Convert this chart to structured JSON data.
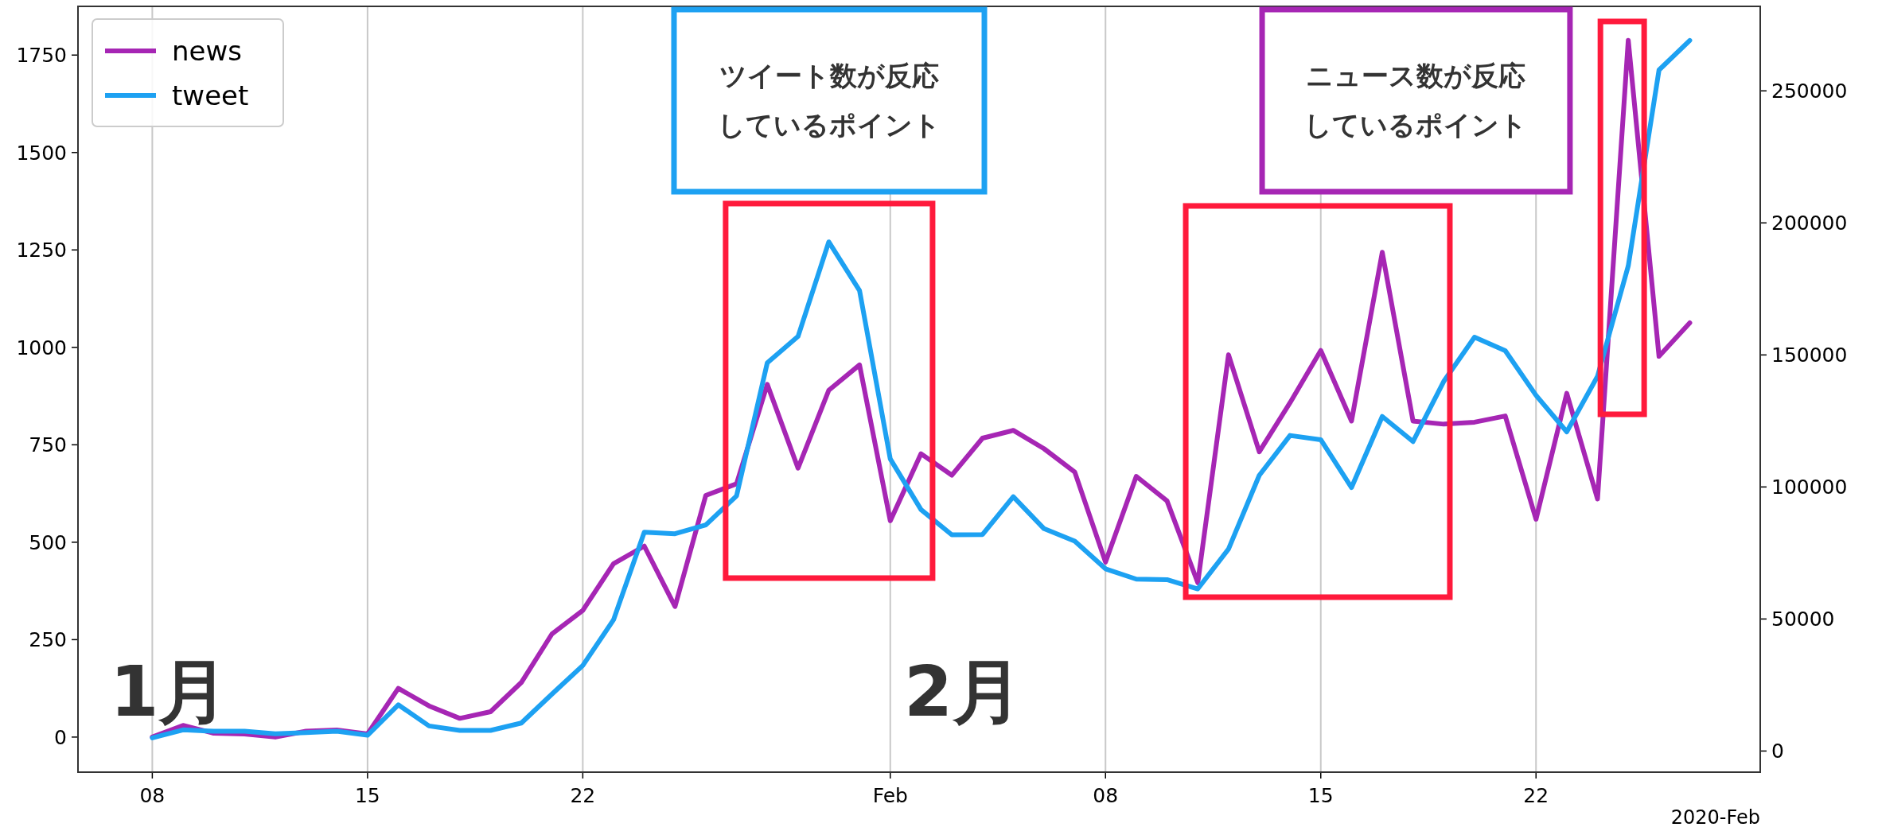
{
  "chart_data": {
    "type": "line",
    "x": [
      "2020-01-08",
      "2020-01-09",
      "2020-01-10",
      "2020-01-11",
      "2020-01-12",
      "2020-01-13",
      "2020-01-14",
      "2020-01-15",
      "2020-01-16",
      "2020-01-17",
      "2020-01-18",
      "2020-01-19",
      "2020-01-20",
      "2020-01-21",
      "2020-01-22",
      "2020-01-23",
      "2020-01-24",
      "2020-01-25",
      "2020-01-26",
      "2020-01-27",
      "2020-01-28",
      "2020-01-29",
      "2020-01-30",
      "2020-01-31",
      "2020-02-01",
      "2020-02-02",
      "2020-02-03",
      "2020-02-04",
      "2020-02-05",
      "2020-02-06",
      "2020-02-07",
      "2020-02-08",
      "2020-02-09",
      "2020-02-10",
      "2020-02-11",
      "2020-02-12",
      "2020-02-13",
      "2020-02-14",
      "2020-02-15",
      "2020-02-16",
      "2020-02-17",
      "2020-02-18",
      "2020-02-19",
      "2020-02-20",
      "2020-02-21",
      "2020-02-22",
      "2020-02-23",
      "2020-02-24",
      "2020-02-25",
      "2020-02-26",
      "2020-02-27"
    ],
    "series": [
      {
        "name": "news",
        "color": "#a626b4",
        "values": [
          0,
          30,
          10,
          8,
          0,
          15,
          18,
          8,
          125,
          80,
          48,
          65,
          140,
          265,
          325,
          445,
          490,
          335,
          620,
          650,
          905,
          690,
          890,
          955,
          555,
          727,
          672,
          767,
          787,
          740,
          680,
          449,
          669,
          606,
          396,
          981,
          732,
          858,
          992,
          811,
          1244,
          811,
          803,
          808,
          824,
          559,
          882,
          611,
          1788,
          977,
          1063
        ]
      },
      {
        "name": "tweet",
        "color": "#1da1f2",
        "axis": "y2",
        "values": [
          5000,
          8000,
          7500,
          7500,
          6500,
          7000,
          7500,
          6000,
          17500,
          9500,
          7800,
          7800,
          10600,
          21600,
          32400,
          49700,
          82900,
          82300,
          85600,
          96600,
          147000,
          157000,
          192800,
          174400,
          110600,
          91400,
          81900,
          82000,
          96300,
          84200,
          79500,
          69000,
          65100,
          64900,
          61400,
          76500,
          104400,
          119500,
          117900,
          99800,
          126700,
          117200,
          140000,
          156700,
          151600,
          134700,
          120900,
          141900,
          183700,
          257900,
          269100
        ]
      }
    ],
    "xlim": [
      "2020-01-05T14:00",
      "2020-02-29T07:00"
    ],
    "xticks": [
      {
        "value": "2020-01-08",
        "label": "08"
      },
      {
        "value": "2020-01-15",
        "label": "15"
      },
      {
        "value": "2020-01-22",
        "label": "22"
      },
      {
        "value": "2020-02-01",
        "label": "Feb"
      },
      {
        "value": "2020-02-08",
        "label": "08"
      },
      {
        "value": "2020-02-15",
        "label": "15"
      },
      {
        "value": "2020-02-22",
        "label": "22"
      }
    ],
    "ylim": [
      -90,
      1875
    ],
    "yticks": [
      0,
      250,
      500,
      750,
      1000,
      1250,
      1500,
      1750
    ],
    "y2lim": [
      -8000,
      282000
    ],
    "y2ticks": [
      0,
      50000,
      100000,
      150000,
      200000,
      250000
    ],
    "grid": "x",
    "legend": "top left",
    "annotations": [
      "ツイート数が反応",
      "しているポイント",
      "ニュース数が反応",
      "しているポイント",
      "1月",
      "2月",
      "2020-Feb"
    ]
  }
}
